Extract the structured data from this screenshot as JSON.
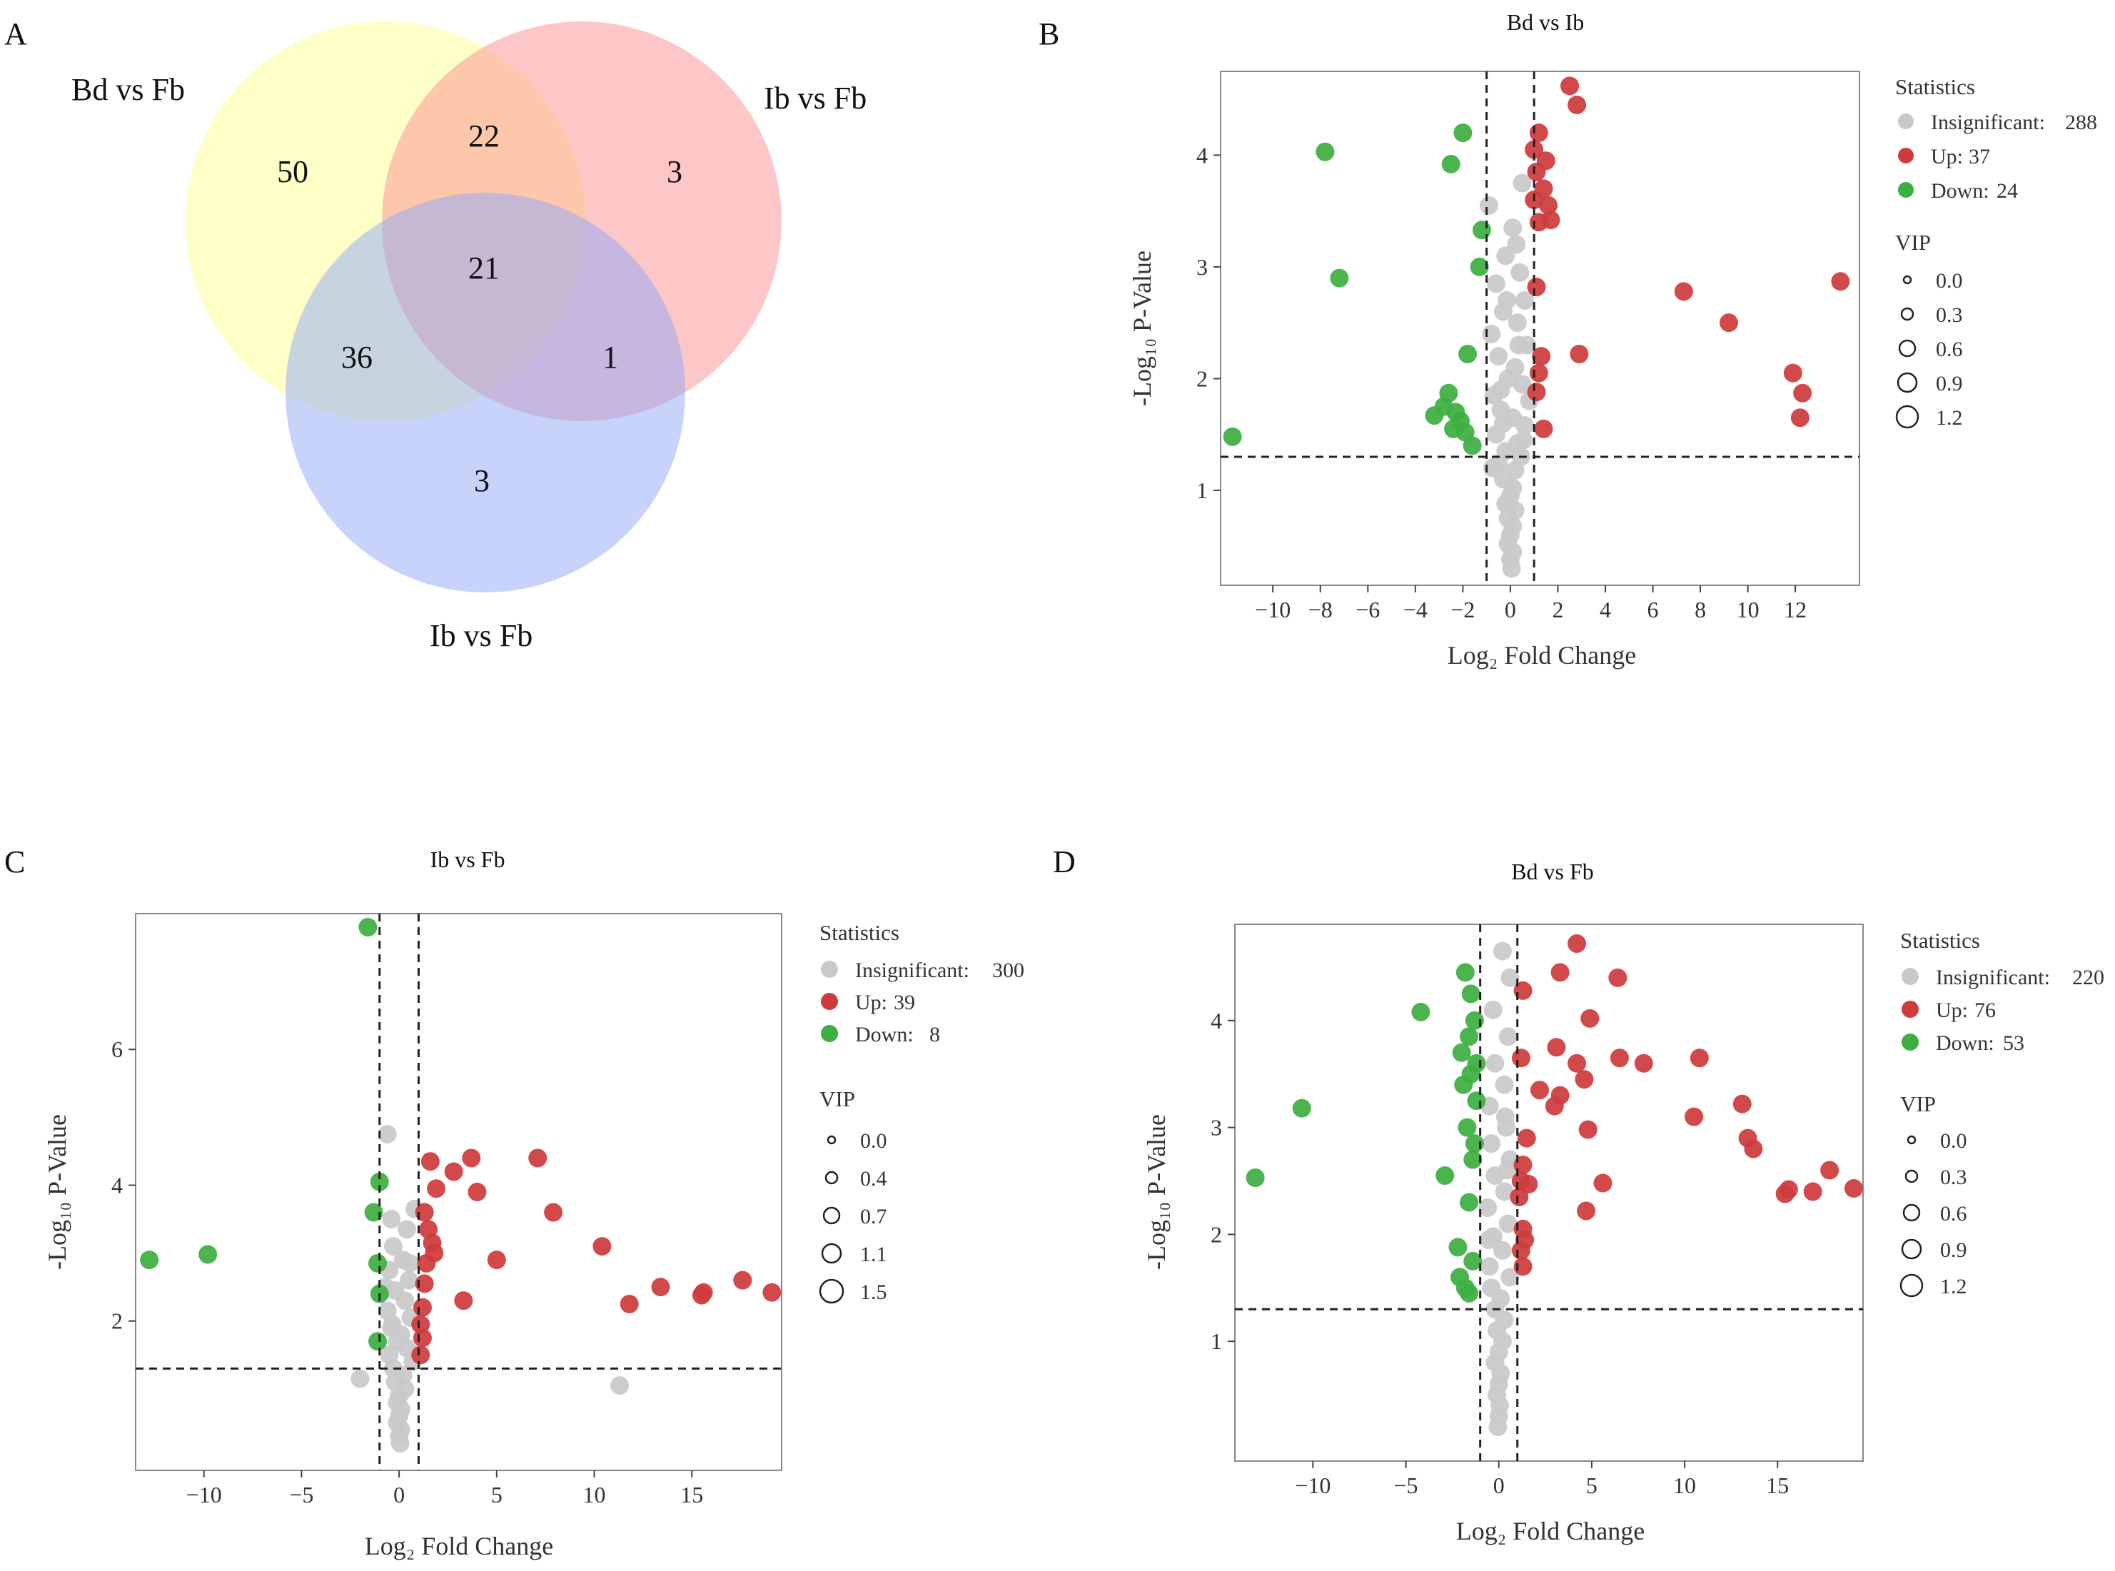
{
  "colors": {
    "insignificant": "#c9c9c9",
    "up": "#cf3b3d",
    "down": "#3dae42",
    "venn_yellow": "#fdfd8f",
    "venn_red": "#fb8f92",
    "venn_blue": "#8fa7f8"
  },
  "venn": {
    "panel": "A",
    "labels": {
      "left": "Bd vs Fb",
      "right": "Ib vs Fb",
      "bottom": "Ib vs Fb"
    },
    "regions": {
      "left_only": "50",
      "left_right": "22",
      "right_only": "3",
      "all_three": "21",
      "left_bottom": "36",
      "right_bottom": "1",
      "bottom_only": "3"
    }
  },
  "chart_data": [
    {
      "id": "B",
      "panel": "B",
      "type": "scatter",
      "title": "Bd vs Ib",
      "xlabel": "Log₂ Fold Change",
      "ylabel": "-Log₁₀ P-Value",
      "xlim": [
        -12.2,
        14.7
      ],
      "ylim": [
        0.15,
        4.75
      ],
      "xticks": [
        -10,
        -8,
        -6,
        -4,
        -2,
        0,
        2,
        4,
        6,
        8,
        10,
        12
      ],
      "yticks": [
        1,
        2,
        3,
        4
      ],
      "fc_threshold": [
        -1,
        1
      ],
      "p_threshold": 1.3,
      "legend": {
        "title": "Statistics",
        "entries": [
          {
            "label": "Insignificant:",
            "count": "288"
          },
          {
            "label": "Up:",
            "count": "37"
          },
          {
            "label": "Down:",
            "count": "24"
          }
        ],
        "vip_title": "VIP",
        "vip_values": [
          "0.0",
          "0.3",
          "0.6",
          "0.9",
          "1.2"
        ]
      },
      "up": [
        [
          2.5,
          4.62
        ],
        [
          2.8,
          4.45
        ],
        [
          1.2,
          4.2
        ],
        [
          1.0,
          4.05
        ],
        [
          1.5,
          3.95
        ],
        [
          1.1,
          3.85
        ],
        [
          1.4,
          3.7
        ],
        [
          1.6,
          3.55
        ],
        [
          1.0,
          3.6
        ],
        [
          1.2,
          3.4
        ],
        [
          1.7,
          3.42
        ],
        [
          1.1,
          2.82
        ],
        [
          1.3,
          2.2
        ],
        [
          2.9,
          2.22
        ],
        [
          1.2,
          2.05
        ],
        [
          1.1,
          1.88
        ],
        [
          1.4,
          1.55
        ],
        [
          7.3,
          2.78
        ],
        [
          9.2,
          2.5
        ],
        [
          11.9,
          2.05
        ],
        [
          12.3,
          1.87
        ],
        [
          12.2,
          1.65
        ],
        [
          13.9,
          2.87
        ]
      ],
      "down": [
        [
          -7.8,
          4.03
        ],
        [
          -2.0,
          4.2
        ],
        [
          -2.5,
          3.92
        ],
        [
          -7.2,
          2.9
        ],
        [
          -1.2,
          3.33
        ],
        [
          -1.3,
          3.0
        ],
        [
          -1.8,
          2.22
        ],
        [
          -2.6,
          1.87
        ],
        [
          -2.8,
          1.75
        ],
        [
          -2.3,
          1.7
        ],
        [
          -2.1,
          1.62
        ],
        [
          -3.2,
          1.67
        ],
        [
          -2.4,
          1.55
        ],
        [
          -1.9,
          1.52
        ],
        [
          -1.6,
          1.4
        ],
        [
          -11.7,
          1.48
        ]
      ],
      "insig": [
        [
          0.5,
          3.75
        ],
        [
          -0.9,
          3.55
        ],
        [
          0.1,
          3.35
        ],
        [
          -0.2,
          3.1
        ],
        [
          0.4,
          2.95
        ],
        [
          -0.6,
          2.85
        ],
        [
          0.6,
          2.7
        ],
        [
          -0.3,
          2.6
        ],
        [
          0.3,
          2.5
        ],
        [
          -0.8,
          2.4
        ],
        [
          0.7,
          2.3
        ],
        [
          -0.5,
          2.2
        ],
        [
          0.2,
          2.1
        ],
        [
          -0.1,
          2.0
        ],
        [
          0.5,
          1.95
        ],
        [
          -0.7,
          1.85
        ],
        [
          0.8,
          1.8
        ],
        [
          -0.4,
          1.72
        ],
        [
          0.1,
          1.65
        ],
        [
          0.6,
          1.58
        ],
        [
          -0.6,
          1.5
        ],
        [
          0.3,
          1.42
        ],
        [
          -0.2,
          1.35
        ],
        [
          0.45,
          1.3
        ],
        [
          -0.5,
          1.24
        ],
        [
          0.2,
          1.18
        ],
        [
          -0.3,
          1.1
        ],
        [
          0.1,
          1.02
        ],
        [
          0.0,
          0.95
        ],
        [
          -0.2,
          0.88
        ],
        [
          0.2,
          0.82
        ],
        [
          -0.1,
          0.75
        ],
        [
          0.1,
          0.68
        ],
        [
          0.0,
          0.6
        ],
        [
          -0.1,
          0.52
        ],
        [
          0.1,
          0.45
        ],
        [
          0.0,
          0.38
        ],
        [
          0.05,
          0.3
        ],
        [
          -0.3,
          1.6
        ],
        [
          0.35,
          2.3
        ],
        [
          -0.15,
          2.7
        ],
        [
          0.25,
          3.2
        ],
        [
          -0.4,
          1.9
        ],
        [
          0.55,
          1.45
        ],
        [
          -0.75,
          1.2
        ]
      ]
    },
    {
      "id": "C",
      "panel": "C",
      "type": "scatter",
      "title": "Ib vs Fb",
      "xlabel": "Log₂ Fold Change",
      "ylabel": "-Log₁₀ P-Value",
      "xlim": [
        -13.5,
        19.6
      ],
      "ylim": [
        -0.2,
        8.0
      ],
      "xticks": [
        -10,
        -5,
        0,
        5,
        10,
        15
      ],
      "yticks": [
        2,
        4,
        6
      ],
      "fc_threshold": [
        -1,
        1
      ],
      "p_threshold": 1.3,
      "legend": {
        "title": "Statistics",
        "entries": [
          {
            "label": "Insignificant:",
            "count": "300"
          },
          {
            "label": "Up:",
            "count": "39"
          },
          {
            "label": "Down:",
            "count": "8"
          }
        ],
        "vip_title": "VIP",
        "vip_values": [
          "0.0",
          "0.4",
          "0.7",
          "1.1",
          "1.5"
        ]
      },
      "up": [
        [
          1.6,
          4.35
        ],
        [
          2.8,
          4.2
        ],
        [
          3.7,
          4.4
        ],
        [
          1.9,
          3.95
        ],
        [
          4.0,
          3.9
        ],
        [
          1.3,
          3.6
        ],
        [
          1.5,
          3.35
        ],
        [
          1.7,
          3.15
        ],
        [
          1.8,
          3.0
        ],
        [
          1.4,
          2.85
        ],
        [
          1.3,
          2.55
        ],
        [
          1.2,
          2.2
        ],
        [
          1.1,
          1.95
        ],
        [
          1.2,
          1.75
        ],
        [
          1.1,
          1.5
        ],
        [
          5.0,
          2.9
        ],
        [
          3.3,
          2.3
        ],
        [
          7.1,
          4.4
        ],
        [
          7.9,
          3.6
        ],
        [
          10.4,
          3.1
        ],
        [
          11.8,
          2.25
        ],
        [
          13.4,
          2.5
        ],
        [
          15.5,
          2.38
        ],
        [
          15.6,
          2.42
        ],
        [
          17.6,
          2.6
        ],
        [
          19.1,
          2.42
        ]
      ],
      "down": [
        [
          -1.6,
          7.8
        ],
        [
          -1.0,
          4.05
        ],
        [
          -1.3,
          3.6
        ],
        [
          -1.1,
          2.85
        ],
        [
          -1.0,
          2.4
        ],
        [
          -1.1,
          1.7
        ],
        [
          -12.8,
          2.9
        ],
        [
          -9.8,
          2.98
        ]
      ],
      "insig": [
        [
          -0.6,
          4.75
        ],
        [
          -0.4,
          3.5
        ],
        [
          0.4,
          3.35
        ],
        [
          -0.3,
          3.1
        ],
        [
          0.2,
          2.9
        ],
        [
          -0.5,
          2.75
        ],
        [
          0.5,
          2.6
        ],
        [
          -0.2,
          2.45
        ],
        [
          0.3,
          2.3
        ],
        [
          -0.6,
          2.15
        ],
        [
          0.6,
          2.05
        ],
        [
          -0.4,
          1.9
        ],
        [
          0.1,
          1.8
        ],
        [
          -0.1,
          1.7
        ],
        [
          0.4,
          1.6
        ],
        [
          -0.5,
          1.5
        ],
        [
          0.7,
          1.4
        ],
        [
          -0.3,
          1.3
        ],
        [
          0.2,
          1.2
        ],
        [
          -0.2,
          1.1
        ],
        [
          0.3,
          1.0
        ],
        [
          0.0,
          0.9
        ],
        [
          -0.1,
          0.8
        ],
        [
          0.1,
          0.7
        ],
        [
          0.0,
          0.6
        ],
        [
          -0.1,
          0.5
        ],
        [
          0.1,
          0.4
        ],
        [
          0.0,
          0.3
        ],
        [
          0.05,
          0.2
        ],
        [
          -2.0,
          1.15
        ],
        [
          11.3,
          1.05
        ],
        [
          0.8,
          3.65
        ],
        [
          -0.7,
          2.5
        ],
        [
          0.55,
          2.85
        ],
        [
          -0.35,
          1.95
        ]
      ]
    },
    {
      "id": "D",
      "panel": "D",
      "type": "scatter",
      "title": "Bd vs Fb",
      "xlabel": "Log₂ Fold Change",
      "ylabel": "-Log₁₀ P-Value",
      "xlim": [
        -14.2,
        19.6
      ],
      "ylim": [
        -0.12,
        4.9
      ],
      "xticks": [
        -10,
        -5,
        0,
        5,
        10,
        15
      ],
      "yticks": [
        1,
        2,
        3,
        4
      ],
      "fc_threshold": [
        -1,
        1
      ],
      "p_threshold": 1.3,
      "legend": {
        "title": "Statistics",
        "entries": [
          {
            "label": "Insignificant:",
            "count": "220"
          },
          {
            "label": "Up:",
            "count": "76"
          },
          {
            "label": "Down:",
            "count": "53"
          }
        ],
        "vip_title": "VIP",
        "vip_values": [
          "0.0",
          "0.3",
          "0.6",
          "0.9",
          "1.2"
        ]
      },
      "up": [
        [
          4.2,
          4.72
        ],
        [
          3.3,
          4.45
        ],
        [
          6.4,
          4.4
        ],
        [
          1.3,
          4.28
        ],
        [
          4.9,
          4.02
        ],
        [
          3.1,
          3.75
        ],
        [
          1.2,
          3.65
        ],
        [
          4.2,
          3.6
        ],
        [
          6.5,
          3.65
        ],
        [
          7.8,
          3.6
        ],
        [
          10.8,
          3.65
        ],
        [
          4.6,
          3.45
        ],
        [
          2.2,
          3.35
        ],
        [
          3.3,
          3.3
        ],
        [
          3.0,
          3.2
        ],
        [
          4.8,
          2.98
        ],
        [
          1.5,
          2.9
        ],
        [
          10.5,
          3.1
        ],
        [
          13.1,
          3.22
        ],
        [
          13.4,
          2.9
        ],
        [
          13.7,
          2.8
        ],
        [
          1.3,
          2.65
        ],
        [
          1.2,
          2.5
        ],
        [
          1.6,
          2.47
        ],
        [
          1.1,
          2.35
        ],
        [
          5.6,
          2.48
        ],
        [
          4.7,
          2.22
        ],
        [
          1.3,
          2.05
        ],
        [
          1.4,
          1.95
        ],
        [
          1.2,
          1.85
        ],
        [
          1.3,
          1.7
        ],
        [
          15.4,
          2.38
        ],
        [
          15.6,
          2.42
        ],
        [
          16.9,
          2.4
        ],
        [
          17.8,
          2.6
        ],
        [
          19.1,
          2.43
        ]
      ],
      "down": [
        [
          -1.8,
          4.45
        ],
        [
          -1.5,
          4.25
        ],
        [
          -4.2,
          4.08
        ],
        [
          -1.3,
          4.0
        ],
        [
          -1.6,
          3.85
        ],
        [
          -2.0,
          3.7
        ],
        [
          -1.2,
          3.6
        ],
        [
          -1.5,
          3.5
        ],
        [
          -1.9,
          3.4
        ],
        [
          -1.2,
          3.25
        ],
        [
          -1.7,
          3.0
        ],
        [
          -1.3,
          2.85
        ],
        [
          -1.4,
          2.7
        ],
        [
          -2.9,
          2.55
        ],
        [
          -1.6,
          2.3
        ],
        [
          -2.2,
          1.88
        ],
        [
          -1.4,
          1.75
        ],
        [
          -2.1,
          1.6
        ],
        [
          -1.8,
          1.5
        ],
        [
          -1.6,
          1.45
        ],
        [
          -10.6,
          3.18
        ],
        [
          -13.1,
          2.53
        ]
      ],
      "insig": [
        [
          0.2,
          4.65
        ],
        [
          0.6,
          4.4
        ],
        [
          -0.3,
          4.1
        ],
        [
          0.5,
          3.85
        ],
        [
          -0.2,
          3.6
        ],
        [
          0.3,
          3.4
        ],
        [
          -0.5,
          3.2
        ],
        [
          0.4,
          3.0
        ],
        [
          -0.4,
          2.85
        ],
        [
          0.6,
          2.7
        ],
        [
          -0.2,
          2.55
        ],
        [
          0.3,
          2.4
        ],
        [
          -0.6,
          2.25
        ],
        [
          0.5,
          2.1
        ],
        [
          -0.3,
          1.98
        ],
        [
          0.2,
          1.85
        ],
        [
          -0.5,
          1.7
        ],
        [
          0.6,
          1.6
        ],
        [
          -0.4,
          1.5
        ],
        [
          0.1,
          1.4
        ],
        [
          -0.2,
          1.3
        ],
        [
          0.3,
          1.2
        ],
        [
          -0.1,
          1.1
        ],
        [
          0.2,
          1.0
        ],
        [
          0.0,
          0.9
        ],
        [
          -0.2,
          0.8
        ],
        [
          0.1,
          0.7
        ],
        [
          0.0,
          0.6
        ],
        [
          -0.1,
          0.5
        ],
        [
          0.05,
          0.4
        ],
        [
          0.0,
          0.3
        ],
        [
          -0.05,
          0.2
        ],
        [
          0.35,
          3.1
        ],
        [
          -0.55,
          1.95
        ],
        [
          0.45,
          2.6
        ]
      ]
    }
  ]
}
